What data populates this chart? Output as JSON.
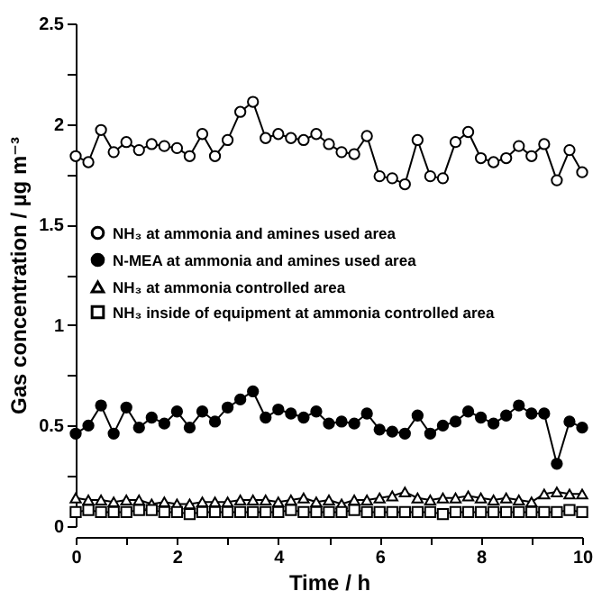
{
  "chart_data": {
    "type": "line",
    "xlabel": "Time / h",
    "ylabel": "Gas concentration / µg m⁻³",
    "x": [
      0,
      0.25,
      0.5,
      0.75,
      1,
      1.25,
      1.5,
      1.75,
      2,
      2.25,
      2.5,
      2.75,
      3,
      3.25,
      3.5,
      3.75,
      4,
      4.25,
      4.5,
      4.75,
      5,
      5.25,
      5.5,
      5.75,
      6,
      6.25,
      6.5,
      6.75,
      7,
      7.25,
      7.5,
      7.75,
      8,
      8.25,
      8.5,
      8.75,
      9,
      9.25,
      9.5,
      9.75,
      10
    ],
    "xlim": [
      0,
      10
    ],
    "xticks": [
      0,
      {
        "value": 1,
        "label": null
      },
      2,
      {
        "value": 3,
        "label": null
      },
      4,
      {
        "value": 5,
        "label": null
      },
      6,
      {
        "value": 7,
        "label": null
      },
      8,
      {
        "value": 9,
        "label": null
      },
      10
    ],
    "ylim": [
      0,
      2.5
    ],
    "yticks": [
      0,
      {
        "value": 0.25,
        "label": null
      },
      0.5,
      {
        "value": 0.75,
        "label": null
      },
      1,
      {
        "value": 1.25,
        "label": null
      },
      1.5,
      {
        "value": 1.75,
        "label": null
      },
      2,
      {
        "value": 2.25,
        "label": null
      },
      2.5
    ],
    "grid": false,
    "legend": "left",
    "line_style": "solid",
    "series": [
      {
        "name": "NH₃ at ammonia and amines used area",
        "color": "#000000",
        "marker": "circle",
        "values": [
          1.84,
          1.81,
          1.97,
          1.86,
          1.91,
          1.87,
          1.9,
          1.89,
          1.88,
          1.84,
          1.95,
          1.84,
          1.92,
          2.06,
          2.11,
          1.93,
          1.95,
          1.93,
          1.92,
          1.95,
          1.9,
          1.86,
          1.85,
          1.94,
          1.74,
          1.73,
          1.7,
          1.92,
          1.74,
          1.73,
          1.91,
          1.96,
          1.83,
          1.81,
          1.83,
          1.89,
          1.84,
          1.9,
          1.72,
          1.87,
          1.76
        ]
      },
      {
        "name": "N-MEA at ammonia and amines used area",
        "color": "#000000",
        "marker": "circle",
        "values": [
          0.46,
          0.5,
          0.6,
          0.46,
          0.59,
          0.49,
          0.54,
          0.51,
          0.57,
          0.49,
          0.57,
          0.52,
          0.59,
          0.63,
          0.67,
          0.54,
          0.58,
          0.56,
          0.54,
          0.57,
          0.51,
          0.52,
          0.51,
          0.56,
          0.48,
          0.47,
          0.46,
          0.55,
          0.46,
          0.5,
          0.52,
          0.57,
          0.54,
          0.51,
          0.55,
          0.6,
          0.56,
          0.56,
          0.31,
          0.52,
          0.49
        ]
      },
      {
        "name": "NH₃ at ammonia controlled area",
        "color": "#000000",
        "marker": "triangle",
        "values": [
          0.14,
          0.13,
          0.13,
          0.12,
          0.13,
          0.13,
          0.11,
          0.12,
          0.11,
          0.11,
          0.12,
          0.12,
          0.12,
          0.13,
          0.13,
          0.13,
          0.12,
          0.13,
          0.14,
          0.12,
          0.13,
          0.11,
          0.13,
          0.13,
          0.14,
          0.15,
          0.17,
          0.14,
          0.13,
          0.14,
          0.14,
          0.15,
          0.14,
          0.13,
          0.14,
          0.13,
          0.12,
          0.16,
          0.17,
          0.16,
          0.16
        ]
      },
      {
        "name": "NH₃ inside of equipment at ammonia controlled area",
        "color": "#000000",
        "marker": "square",
        "values": [
          0.07,
          0.08,
          0.07,
          0.07,
          0.07,
          0.08,
          0.08,
          0.07,
          0.07,
          0.06,
          0.07,
          0.07,
          0.07,
          0.07,
          0.07,
          0.07,
          0.07,
          0.08,
          0.07,
          0.07,
          0.07,
          0.07,
          0.08,
          0.07,
          0.07,
          0.07,
          0.07,
          0.07,
          0.07,
          0.06,
          0.07,
          0.07,
          0.07,
          0.07,
          0.07,
          0.07,
          0.07,
          0.07,
          0.07,
          0.08,
          0.07
        ]
      }
    ]
  }
}
